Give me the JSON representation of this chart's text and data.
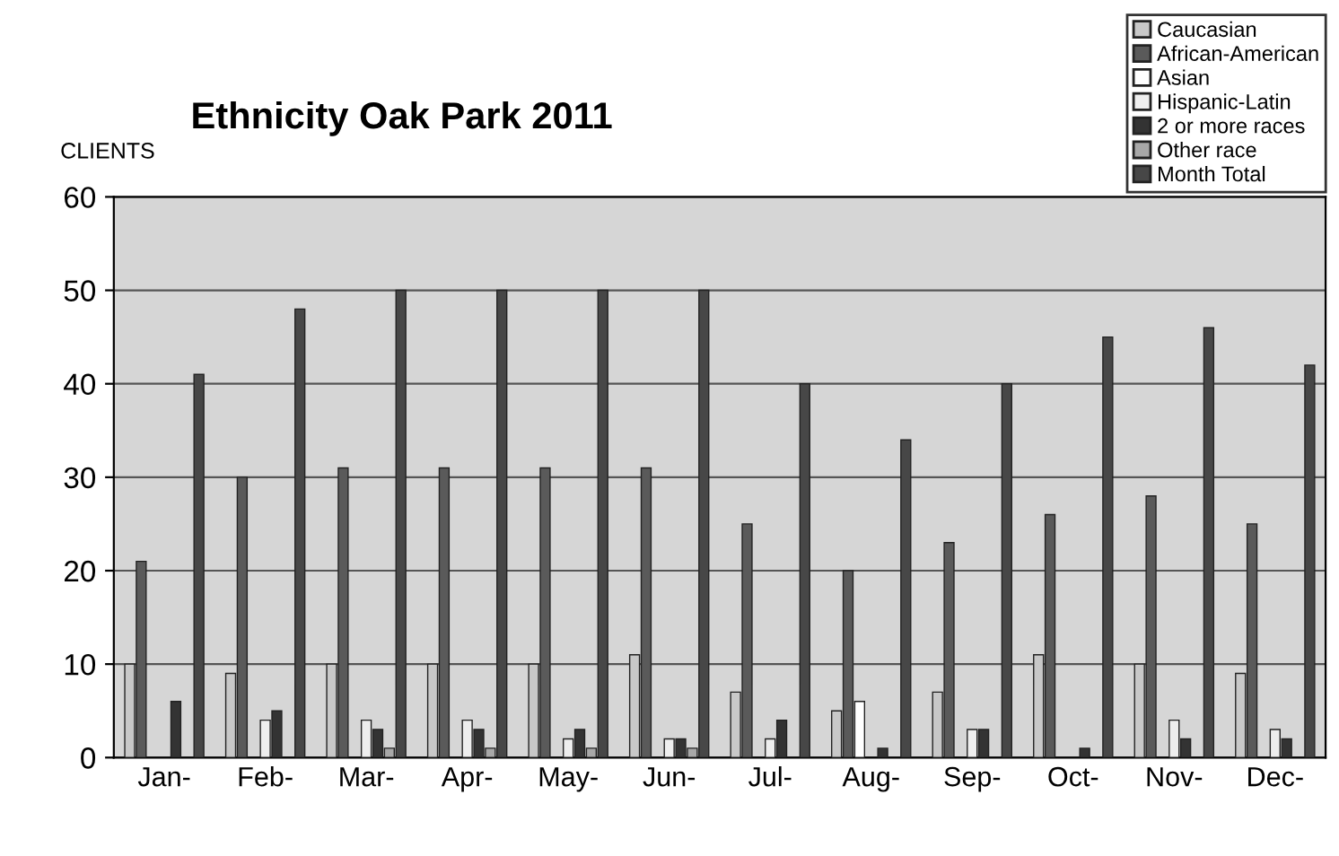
{
  "chart_data": {
    "type": "bar",
    "title": "Ethnicity Oak Park 2011",
    "ylabel": "CLIENTS",
    "categories": [
      "Jan-",
      "Feb-",
      "Mar-",
      "Apr-",
      "May-",
      "Jun-",
      "Jul-",
      "Aug-",
      "Sep-",
      "Oct-",
      "Nov-",
      "Dec-"
    ],
    "series": [
      {
        "name": "Caucasian",
        "color": "#c8c8c8",
        "values": [
          10,
          9,
          10,
          10,
          10,
          11,
          7,
          5,
          7,
          11,
          10,
          9
        ]
      },
      {
        "name": "African-American",
        "color": "#5a5a5a",
        "values": [
          21,
          30,
          31,
          31,
          31,
          31,
          25,
          20,
          23,
          26,
          28,
          25
        ]
      },
      {
        "name": "Asian",
        "color": "#ffffff",
        "values": [
          0,
          0,
          0,
          0,
          0,
          0,
          0,
          6,
          0,
          0,
          0,
          0
        ]
      },
      {
        "name": "Hispanic-Latin",
        "color": "#eeeeee",
        "values": [
          0,
          4,
          4,
          4,
          2,
          2,
          2,
          0,
          3,
          0,
          4,
          3
        ]
      },
      {
        "name": "2 or more races",
        "color": "#333333",
        "values": [
          6,
          5,
          3,
          3,
          3,
          2,
          4,
          1,
          3,
          1,
          2,
          2
        ]
      },
      {
        "name": "Other race",
        "color": "#a8a8a8",
        "values": [
          0,
          0,
          1,
          1,
          1,
          1,
          0,
          0,
          0,
          0,
          0,
          0
        ]
      },
      {
        "name": "Month Total",
        "color": "#474747",
        "values": [
          41,
          48,
          50,
          50,
          50,
          50,
          40,
          34,
          40,
          45,
          46,
          42
        ]
      }
    ],
    "ylim": [
      0,
      60
    ],
    "yticks": [
      0,
      10,
      20,
      30,
      40,
      50,
      60
    ],
    "grid": "y",
    "legend": "top right"
  }
}
